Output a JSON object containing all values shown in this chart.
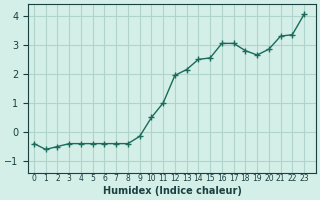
{
  "title": "",
  "xlabel": "Humidex (Indice chaleur)",
  "ylabel": "",
  "background_color": "#d4eee8",
  "grid_color": "#b0d4cc",
  "line_color": "#1a6b5a",
  "marker_color": "#1a6b5a",
  "xlim": [
    -0.5,
    24
  ],
  "ylim": [
    -1.4,
    4.4
  ],
  "yticks": [
    -1,
    0,
    1,
    2,
    3,
    4
  ],
  "xtick_labels": [
    "0",
    "1",
    "2",
    "3",
    "4",
    "5",
    "6",
    "7",
    "8",
    "9",
    "10",
    "11",
    "12",
    "13",
    "14",
    "15",
    "16",
    "17",
    "18",
    "19",
    "20",
    "21",
    "22",
    "23"
  ],
  "x": [
    0,
    1,
    2,
    3,
    4,
    5,
    6,
    7,
    8,
    9,
    10,
    11,
    12,
    13,
    14,
    15,
    16,
    17,
    18,
    19,
    20,
    21,
    22,
    23
  ],
  "y": [
    -0.4,
    -0.6,
    -0.5,
    -0.4,
    -0.4,
    -0.4,
    -0.4,
    -0.4,
    -0.4,
    -0.15,
    0.5,
    1.0,
    1.95,
    2.15,
    2.5,
    2.55,
    3.05,
    3.05,
    2.8,
    2.65,
    2.85,
    3.3,
    3.35,
    4.05
  ]
}
